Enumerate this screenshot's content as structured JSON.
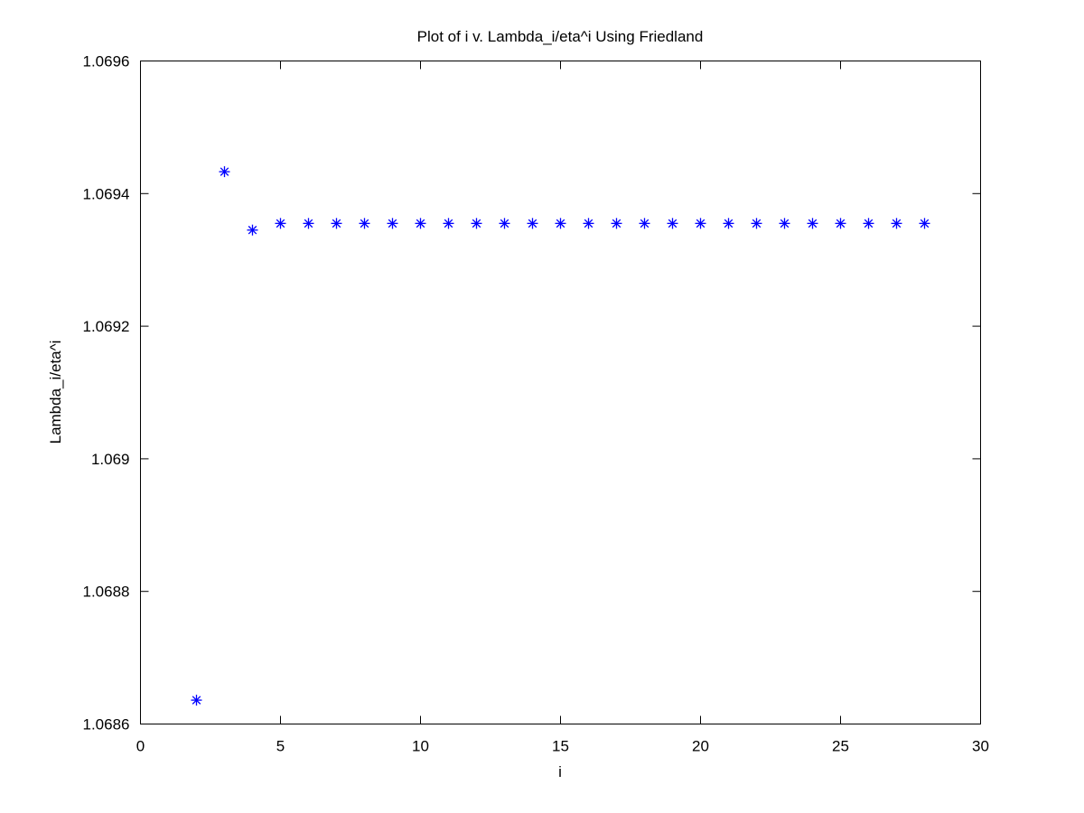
{
  "chart_data": {
    "type": "scatter",
    "title": "Plot of i v. Lambda_i/eta^i Using Friedland",
    "xlabel": "i",
    "ylabel": "Lambda_i/eta^i",
    "xlim": [
      0,
      30
    ],
    "ylim": [
      1.0686,
      1.0696
    ],
    "xticks": [
      0,
      5,
      10,
      15,
      20,
      25,
      30
    ],
    "xtick_labels": [
      "0",
      "5",
      "10",
      "15",
      "20",
      "25",
      "30"
    ],
    "yticks": [
      1.0686,
      1.0688,
      1.069,
      1.0692,
      1.0694,
      1.0696
    ],
    "ytick_labels": [
      "1.0686",
      "1.0688",
      "1.069",
      "1.0692",
      "1.0694",
      "1.0696"
    ],
    "grid": false,
    "legend": "none",
    "marker": "asterisk",
    "marker_color": "#0000ff",
    "series": [
      {
        "x": [
          2,
          3,
          4,
          5,
          6,
          7,
          8,
          9,
          10,
          11,
          12,
          13,
          14,
          15,
          16,
          17,
          18,
          19,
          20,
          21,
          22,
          23,
          24,
          25,
          26,
          27,
          28
        ],
        "y": [
          1.068636,
          1.069433,
          1.069345,
          1.069355,
          1.069355,
          1.069355,
          1.069355,
          1.069355,
          1.069355,
          1.069355,
          1.069355,
          1.069355,
          1.069355,
          1.069355,
          1.069355,
          1.069355,
          1.069355,
          1.069355,
          1.069355,
          1.069355,
          1.069355,
          1.069355,
          1.069355,
          1.069355,
          1.069355,
          1.069355,
          1.069355
        ]
      }
    ]
  }
}
